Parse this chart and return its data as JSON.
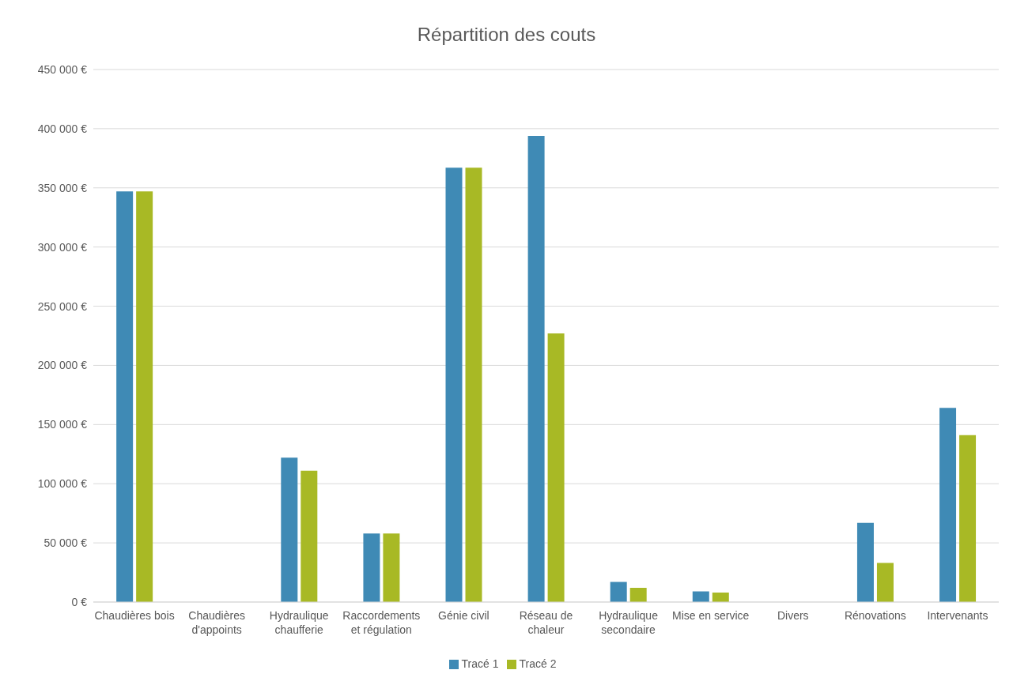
{
  "chart_data": {
    "type": "bar",
    "title": "Répartition des couts",
    "categories": [
      "Chaudières bois",
      "Chaudières d'appoints",
      "Hydraulique chaufferie",
      "Raccordements et régulation",
      "Génie civil",
      "Réseau de chaleur",
      "Hydraulique secondaire",
      "Mise en service",
      "Divers",
      "Rénovations",
      "Intervenants"
    ],
    "series": [
      {
        "name": "Tracé 1",
        "color": "#3f8ab5",
        "values": [
          347000,
          0,
          122000,
          58000,
          367000,
          394000,
          17000,
          9000,
          0,
          67000,
          164000
        ]
      },
      {
        "name": "Tracé 2",
        "color": "#a8b925",
        "values": [
          347000,
          0,
          111000,
          58000,
          367000,
          227000,
          12000,
          8000,
          0,
          33000,
          141000
        ]
      }
    ],
    "ylim": [
      0,
      450000
    ],
    "yticks": [
      {
        "value": 0,
        "label": "0 €"
      },
      {
        "value": 50000,
        "label": "50 000 €"
      },
      {
        "value": 100000,
        "label": "100 000 €"
      },
      {
        "value": 150000,
        "label": "150 000 €"
      },
      {
        "value": 200000,
        "label": "200 000 €"
      },
      {
        "value": 250000,
        "label": "250 000 €"
      },
      {
        "value": 300000,
        "label": "300 000 €"
      },
      {
        "value": 350000,
        "label": "350 000 €"
      },
      {
        "value": 400000,
        "label": "400 000 €"
      },
      {
        "value": 450000,
        "label": "450 000 €"
      }
    ],
    "grid": "y",
    "legend": "bottom"
  }
}
